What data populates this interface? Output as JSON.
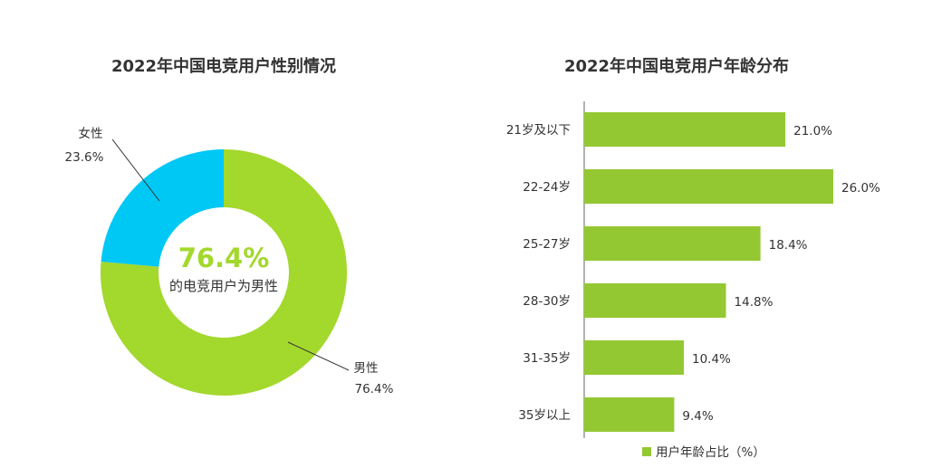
{
  "colors": {
    "male": "#a3d82d",
    "female": "#00c8f5",
    "bar": "#94c833",
    "text": "#333333",
    "axis": "#666666"
  },
  "chart_data": [
    {
      "type": "pie",
      "variant": "donut",
      "title": "2022年中国电竞用户性别情况",
      "center_value": "76.4%",
      "center_text": "的电竞用户为男性",
      "slices": [
        {
          "name": "男性",
          "label": "76.4%",
          "value": 76.4
        },
        {
          "name": "女性",
          "label": "23.6%",
          "value": 23.6
        }
      ]
    },
    {
      "type": "bar",
      "orientation": "horizontal",
      "title": "2022年中国电竞用户年龄分布",
      "categories": [
        "21岁及以下",
        "22-24岁",
        "25-27岁",
        "28-30岁",
        "31-35岁",
        "35岁以上"
      ],
      "values": [
        21.0,
        26.0,
        18.4,
        14.8,
        10.4,
        9.4
      ],
      "value_labels": [
        "21.0%",
        "26.0%",
        "18.4%",
        "14.8%",
        "10.4%",
        "9.4%"
      ],
      "xlim": [
        0,
        26.0
      ],
      "legend": "用户年龄占比（%）",
      "legend_position": "bottom"
    }
  ]
}
